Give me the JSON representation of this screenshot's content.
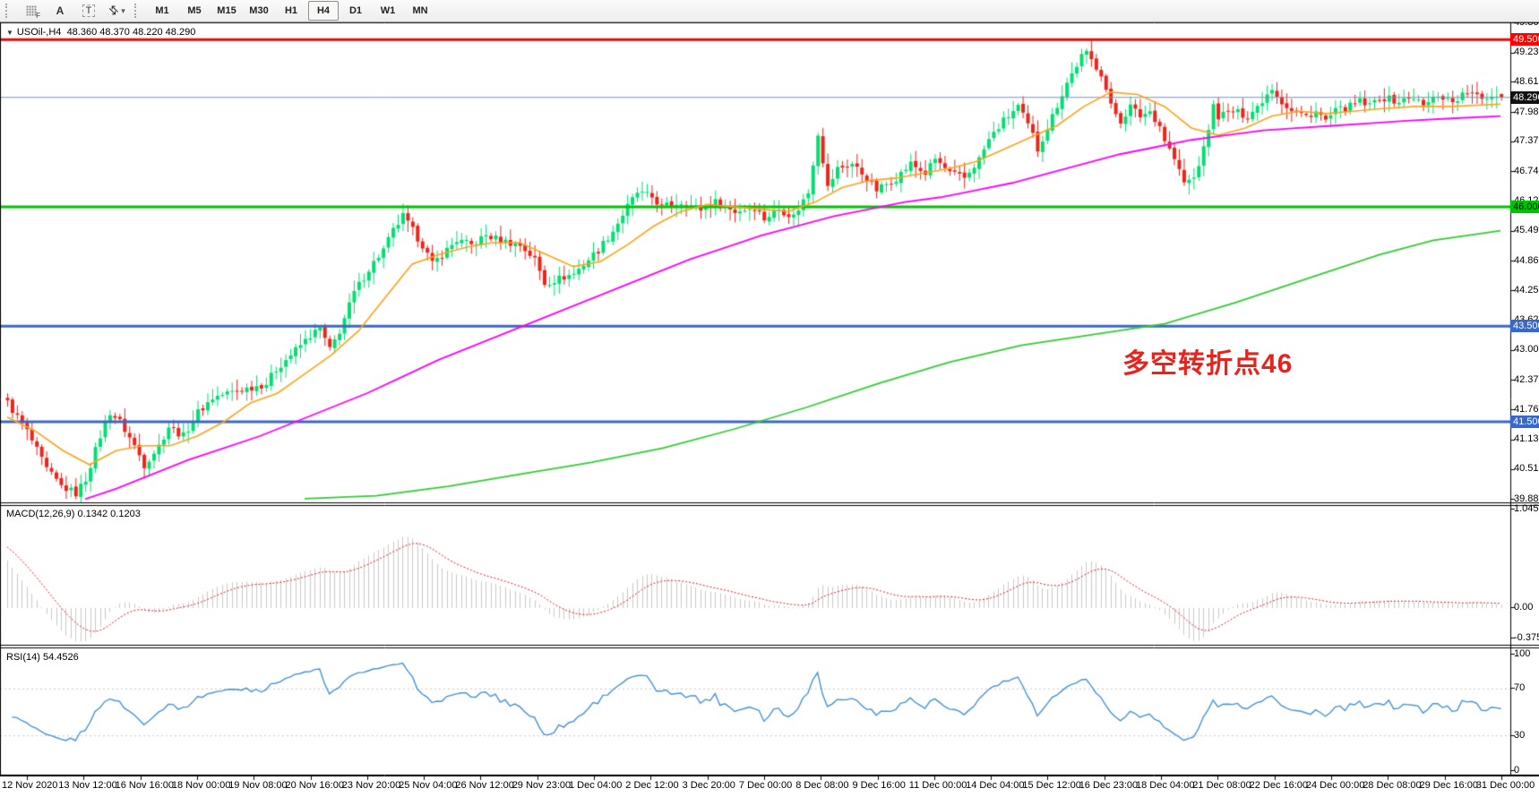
{
  "toolbar": {
    "tools": [
      {
        "name": "chart-grid-tool",
        "label": "F"
      },
      {
        "name": "text-label-tool",
        "label": "A"
      },
      {
        "name": "text-box-tool",
        "label": "T"
      },
      {
        "name": "arrows-tool",
        "label": "⇵",
        "caret": "▾"
      }
    ],
    "timeframes": [
      "M1",
      "M5",
      "M15",
      "M30",
      "H1",
      "H4",
      "D1",
      "W1",
      "MN"
    ],
    "active_timeframe": "H4"
  },
  "title": {
    "symbol_period": "USOil-,H4",
    "ohlc_text": "48.360 48.370 48.220 48.290"
  },
  "annotation": {
    "text": "多空转折点46",
    "color": "#e8231b"
  },
  "price_axis": {
    "ticks": [
      "49.860",
      "49.230",
      "48.615",
      "47.985",
      "47.370",
      "46.740",
      "46.125",
      "45.495",
      "44.865",
      "44.250",
      "43.620",
      "43.005",
      "42.375",
      "41.760",
      "41.130",
      "40.515",
      "39.885"
    ],
    "levels": [
      {
        "label": "49.500",
        "value": 49.5,
        "bg": "#fd0000",
        "fg": "#ffffff",
        "line": "#fd0000",
        "width": 3
      },
      {
        "label": "48.290",
        "value": 48.29,
        "bg": "#111111",
        "fg": "#ffffff",
        "line": "#7e93a8",
        "width": 1
      },
      {
        "label": "46.000",
        "value": 46.0,
        "bg": "#00c400",
        "fg": "#000000",
        "line": "#00c400",
        "width": 3
      },
      {
        "label": "43.500",
        "value": 43.5,
        "bg": "#3a68c8",
        "fg": "#ffffff",
        "line": "#3a68c8",
        "width": 3
      },
      {
        "label": "41.500",
        "value": 41.5,
        "bg": "#3a68c8",
        "fg": "#ffffff",
        "line": "#3a68c8",
        "width": 3
      }
    ]
  },
  "macd": {
    "label": "MACD(12,26,9) 0.1342 0.1203",
    "axis_top": "1.0455",
    "axis_zero": "0.00",
    "axis_bottom": "-0.375",
    "value": "0.1342",
    "signal": "0.1203"
  },
  "rsi": {
    "label": "RSI(14) 54.4526",
    "axis": [
      "100",
      "70",
      "30",
      "0"
    ],
    "value": "54.4526"
  },
  "time_axis": [
    "12 Nov 2020",
    "13 Nov 12:00",
    "16 Nov 16:00",
    "18 Nov 00:00",
    "19 Nov 08:00",
    "20 Nov 16:00",
    "23 Nov 20:00",
    "25 Nov 04:00",
    "26 Nov 12:00",
    "29 Nov 23:00",
    "1 Dec 04:00",
    "2 Dec 12:00",
    "3 Dec 20:00",
    "7 Dec 00:00",
    "8 Dec 08:00",
    "9 Dec 16:00",
    "11 Dec 00:00",
    "14 Dec 04:00",
    "15 Dec 12:00",
    "16 Dec 23:00",
    "18 Dec 04:00",
    "21 Dec 08:00",
    "22 Dec 16:00",
    "24 Dec 00:00",
    "28 Dec 08:00",
    "29 Dec 16:00",
    "31 Dec 00:00"
  ],
  "chart_data": {
    "type": "candlestick",
    "symbol": "USOil-",
    "period": "H4",
    "last_bar": {
      "open": 48.36,
      "high": 48.37,
      "low": 48.22,
      "close": 48.29
    },
    "ylim": [
      39.885,
      49.86
    ],
    "bars": 307,
    "price_keyframes": [
      [
        0,
        41.9
      ],
      [
        4,
        41.3
      ],
      [
        8,
        40.5
      ],
      [
        11,
        40.15
      ],
      [
        14,
        40.0
      ],
      [
        16,
        40.3
      ],
      [
        19,
        41.2
      ],
      [
        21,
        41.7
      ],
      [
        23,
        41.5
      ],
      [
        26,
        41.0
      ],
      [
        28,
        40.6
      ],
      [
        31,
        41.0
      ],
      [
        33,
        41.4
      ],
      [
        36,
        41.2
      ],
      [
        39,
        41.7
      ],
      [
        42,
        42.0
      ],
      [
        45,
        42.1
      ],
      [
        49,
        42.2
      ],
      [
        53,
        42.3
      ],
      [
        55,
        42.6
      ],
      [
        59,
        43.0
      ],
      [
        62,
        43.3
      ],
      [
        64,
        43.45
      ],
      [
        66,
        43.0
      ],
      [
        68,
        43.4
      ],
      [
        71,
        44.2
      ],
      [
        74,
        44.7
      ],
      [
        77,
        45.1
      ],
      [
        79,
        45.5
      ],
      [
        81,
        45.8
      ],
      [
        83,
        45.5
      ],
      [
        85,
        45.2
      ],
      [
        87,
        44.8
      ],
      [
        89,
        45.0
      ],
      [
        92,
        45.3
      ],
      [
        95,
        45.2
      ],
      [
        98,
        45.4
      ],
      [
        101,
        45.3
      ],
      [
        105,
        45.2
      ],
      [
        108,
        44.9
      ],
      [
        110,
        44.4
      ],
      [
        113,
        44.5
      ],
      [
        116,
        44.6
      ],
      [
        119,
        44.9
      ],
      [
        121,
        45.1
      ],
      [
        124,
        45.5
      ],
      [
        127,
        46.0
      ],
      [
        129,
        46.3
      ],
      [
        132,
        46.2
      ],
      [
        134,
        46.0
      ],
      [
        138,
        46.1
      ],
      [
        142,
        45.95
      ],
      [
        145,
        46.1
      ],
      [
        149,
        45.9
      ],
      [
        153,
        46.0
      ],
      [
        155,
        45.75
      ],
      [
        158,
        45.95
      ],
      [
        161,
        45.8
      ],
      [
        164,
        46.3
      ],
      [
        166,
        47.55
      ],
      [
        168,
        46.4
      ],
      [
        170,
        46.8
      ],
      [
        173,
        46.9
      ],
      [
        176,
        46.6
      ],
      [
        178,
        46.35
      ],
      [
        182,
        46.6
      ],
      [
        185,
        46.9
      ],
      [
        188,
        46.7
      ],
      [
        190,
        47.0
      ],
      [
        193,
        46.7
      ],
      [
        196,
        46.6
      ],
      [
        199,
        47.0
      ],
      [
        201,
        47.4
      ],
      [
        204,
        47.8
      ],
      [
        207,
        48.1
      ],
      [
        210,
        47.5
      ],
      [
        211,
        47.2
      ],
      [
        214,
        47.9
      ],
      [
        217,
        48.6
      ],
      [
        220,
        49.15
      ],
      [
        221,
        49.2
      ],
      [
        224,
        48.8
      ],
      [
        226,
        48.1
      ],
      [
        228,
        47.8
      ],
      [
        230,
        48.1
      ],
      [
        232,
        47.9
      ],
      [
        234,
        48.0
      ],
      [
        236,
        47.7
      ],
      [
        237,
        47.4
      ],
      [
        239,
        47.0
      ],
      [
        241,
        46.5
      ],
      [
        243,
        46.6
      ],
      [
        245,
        47.2
      ],
      [
        247,
        48.1
      ],
      [
        248,
        47.9
      ],
      [
        251,
        48.0
      ],
      [
        254,
        47.9
      ],
      [
        256,
        48.1
      ],
      [
        259,
        48.5
      ],
      [
        261,
        48.2
      ],
      [
        263,
        48.0
      ],
      [
        266,
        47.9
      ],
      [
        268,
        48.0
      ],
      [
        270,
        47.8
      ],
      [
        272,
        48.0
      ],
      [
        275,
        48.1
      ],
      [
        277,
        48.2
      ],
      [
        279,
        48.1
      ],
      [
        281,
        48.3
      ],
      [
        285,
        48.2
      ],
      [
        288,
        48.3
      ],
      [
        290,
        48.1
      ],
      [
        293,
        48.35
      ],
      [
        296,
        48.2
      ],
      [
        299,
        48.4
      ],
      [
        302,
        48.25
      ],
      [
        304,
        48.35
      ],
      [
        306,
        48.29
      ]
    ],
    "ma_fast": {
      "period": 21,
      "color": "#ffa217",
      "points": [
        [
          8,
          41.6
        ],
        [
          40,
          41.3
        ],
        [
          70,
          40.9
        ],
        [
          100,
          40.6
        ],
        [
          130,
          40.9
        ],
        [
          160,
          41.0
        ],
        [
          190,
          41.0
        ],
        [
          220,
          41.2
        ],
        [
          250,
          41.5
        ],
        [
          280,
          41.9
        ],
        [
          310,
          42.1
        ],
        [
          340,
          42.5
        ],
        [
          370,
          42.9
        ],
        [
          400,
          43.4
        ],
        [
          430,
          44.1
        ],
        [
          460,
          44.8
        ],
        [
          490,
          45.0
        ],
        [
          520,
          45.15
        ],
        [
          550,
          45.25
        ],
        [
          580,
          45.25
        ],
        [
          610,
          45.0
        ],
        [
          640,
          44.75
        ],
        [
          670,
          44.85
        ],
        [
          700,
          45.2
        ],
        [
          730,
          45.6
        ],
        [
          760,
          45.9
        ],
        [
          790,
          46.05
        ],
        [
          820,
          46.0
        ],
        [
          850,
          45.95
        ],
        [
          880,
          45.9
        ],
        [
          910,
          46.1
        ],
        [
          940,
          46.4
        ],
        [
          970,
          46.55
        ],
        [
          1000,
          46.6
        ],
        [
          1030,
          46.7
        ],
        [
          1060,
          46.8
        ],
        [
          1090,
          46.95
        ],
        [
          1120,
          47.2
        ],
        [
          1150,
          47.45
        ],
        [
          1180,
          47.7
        ],
        [
          1210,
          48.1
        ],
        [
          1240,
          48.4
        ],
        [
          1270,
          48.35
        ],
        [
          1300,
          48.1
        ],
        [
          1330,
          47.65
        ],
        [
          1360,
          47.5
        ],
        [
          1390,
          47.65
        ],
        [
          1420,
          47.9
        ],
        [
          1450,
          48.0
        ],
        [
          1480,
          47.95
        ],
        [
          1510,
          48.0
        ],
        [
          1540,
          48.05
        ],
        [
          1580,
          48.1
        ],
        [
          1620,
          48.1
        ],
        [
          1675,
          48.15
        ]
      ]
    },
    "ma_mid": {
      "period": 55,
      "color": "#ff00ff",
      "points": [
        [
          95,
          39.88
        ],
        [
          130,
          40.1
        ],
        [
          170,
          40.4
        ],
        [
          210,
          40.7
        ],
        [
          250,
          40.95
        ],
        [
          290,
          41.2
        ],
        [
          330,
          41.5
        ],
        [
          370,
          41.8
        ],
        [
          410,
          42.1
        ],
        [
          450,
          42.45
        ],
        [
          490,
          42.8
        ],
        [
          530,
          43.1
        ],
        [
          570,
          43.4
        ],
        [
          610,
          43.7
        ],
        [
          650,
          44.0
        ],
        [
          690,
          44.3
        ],
        [
          730,
          44.6
        ],
        [
          770,
          44.9
        ],
        [
          810,
          45.15
        ],
        [
          850,
          45.4
        ],
        [
          890,
          45.6
        ],
        [
          930,
          45.8
        ],
        [
          970,
          45.95
        ],
        [
          1010,
          46.1
        ],
        [
          1050,
          46.2
        ],
        [
          1090,
          46.35
        ],
        [
          1130,
          46.5
        ],
        [
          1170,
          46.7
        ],
        [
          1210,
          46.9
        ],
        [
          1250,
          47.1
        ],
        [
          1290,
          47.25
        ],
        [
          1330,
          47.4
        ],
        [
          1370,
          47.5
        ],
        [
          1410,
          47.6
        ],
        [
          1450,
          47.65
        ],
        [
          1490,
          47.7
        ],
        [
          1530,
          47.75
        ],
        [
          1570,
          47.8
        ],
        [
          1620,
          47.85
        ],
        [
          1675,
          47.9
        ]
      ]
    },
    "ma_slow": {
      "period": 144,
      "color": "#32cd32",
      "points": [
        [
          340,
          39.89
        ],
        [
          420,
          39.95
        ],
        [
          500,
          40.15
        ],
        [
          580,
          40.4
        ],
        [
          660,
          40.65
        ],
        [
          740,
          40.95
        ],
        [
          820,
          41.35
        ],
        [
          900,
          41.8
        ],
        [
          980,
          42.3
        ],
        [
          1060,
          42.75
        ],
        [
          1140,
          43.1
        ],
        [
          1300,
          43.55
        ],
        [
          1380,
          44.0
        ],
        [
          1460,
          44.5
        ],
        [
          1540,
          45.0
        ],
        [
          1600,
          45.3
        ],
        [
          1675,
          45.5
        ]
      ]
    },
    "indicators": {
      "macd": {
        "params": [
          12,
          26,
          9
        ],
        "current": 0.1342,
        "signal": 0.1203,
        "range": [
          -0.375,
          1.0455
        ]
      },
      "rsi": {
        "params": [
          14
        ],
        "current": 54.4526,
        "levels": [
          70,
          30
        ],
        "range": [
          0,
          100
        ]
      }
    },
    "colors": {
      "up": "#00e070",
      "down": "#ee2419",
      "macd_hist": "#c9c9c9",
      "macd_signal": "#dd2020",
      "rsi": "#4592d8",
      "dashed_levels": "#c9c9c9"
    }
  }
}
